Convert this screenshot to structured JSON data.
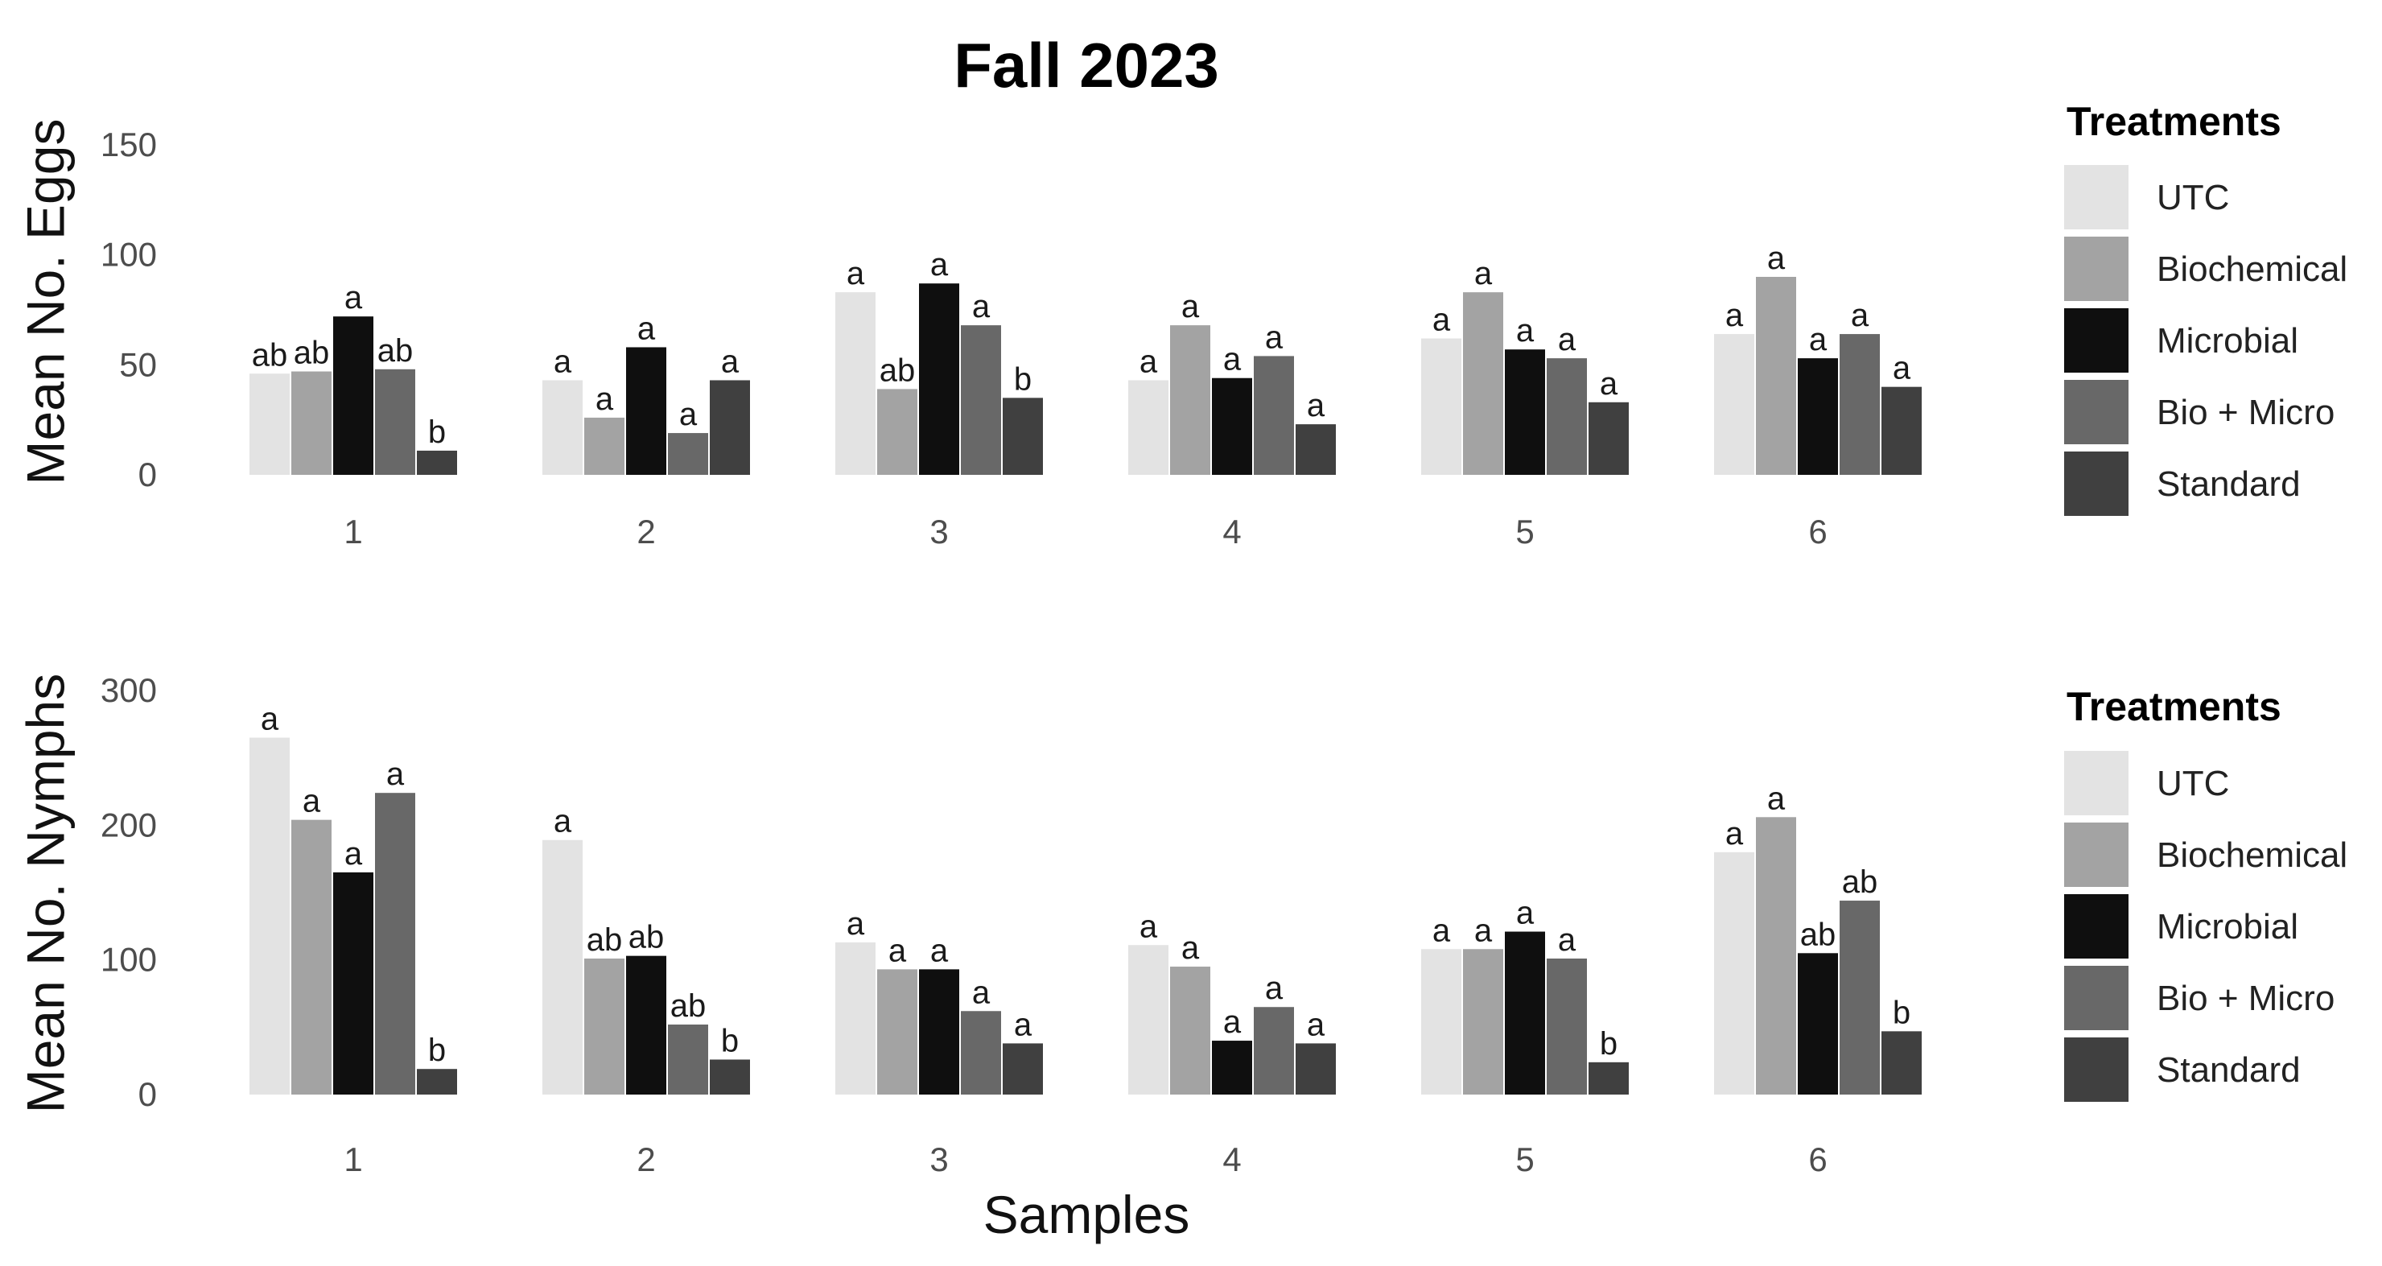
{
  "title": "Fall 2023",
  "xlabel": "Samples",
  "colors": {
    "UTC": "#e3e3e3",
    "Biochemical": "#a3a3a3",
    "Microbial": "#0f0f0f",
    "Bio + Micro": "#686868",
    "Standard": "#404040"
  },
  "chart_data": [
    {
      "type": "bar",
      "ylabel": "Mean No. Eggs",
      "ylim": [
        0,
        150
      ],
      "yticks": [
        0,
        50,
        100,
        150
      ],
      "categories": [
        "1",
        "2",
        "3",
        "4",
        "5",
        "6"
      ],
      "legend": {
        "title": "Treatments",
        "placement": "right"
      },
      "grid": false,
      "series": [
        {
          "name": "UTC",
          "values": [
            46,
            43,
            83,
            43,
            62,
            64
          ],
          "labels": [
            "ab",
            "a",
            "a",
            "a",
            "a",
            "a"
          ]
        },
        {
          "name": "Biochemical",
          "values": [
            47,
            26,
            39,
            68,
            83,
            90
          ],
          "labels": [
            "ab",
            "a",
            "ab",
            "a",
            "a",
            "a"
          ]
        },
        {
          "name": "Microbial",
          "values": [
            72,
            58,
            87,
            44,
            57,
            53
          ],
          "labels": [
            "a",
            "a",
            "a",
            "a",
            "a",
            "a"
          ]
        },
        {
          "name": "Bio + Micro",
          "values": [
            48,
            19,
            68,
            54,
            53,
            64
          ],
          "labels": [
            "ab",
            "a",
            "a",
            "a",
            "a",
            "a"
          ]
        },
        {
          "name": "Standard",
          "values": [
            11,
            43,
            35,
            23,
            33,
            40
          ],
          "labels": [
            "b",
            "a",
            "b",
            "a",
            "a",
            "a"
          ]
        }
      ]
    },
    {
      "type": "bar",
      "ylabel": "Mean No. Nymphs",
      "ylim": [
        0,
        300
      ],
      "yticks": [
        0,
        100,
        200,
        300
      ],
      "categories": [
        "1",
        "2",
        "3",
        "4",
        "5",
        "6"
      ],
      "legend": {
        "title": "Treatments",
        "placement": "right"
      },
      "grid": false,
      "series": [
        {
          "name": "UTC",
          "values": [
            265,
            189,
            113,
            111,
            108,
            180
          ],
          "labels": [
            "a",
            "a",
            "a",
            "a",
            "a",
            "a"
          ]
        },
        {
          "name": "Biochemical",
          "values": [
            204,
            101,
            93,
            95,
            108,
            206
          ],
          "labels": [
            "a",
            "ab",
            "a",
            "a",
            "a",
            "a"
          ]
        },
        {
          "name": "Microbial",
          "values": [
            165,
            103,
            93,
            40,
            121,
            105
          ],
          "labels": [
            "a",
            "ab",
            "a",
            "a",
            "a",
            "ab"
          ]
        },
        {
          "name": "Bio + Micro",
          "values": [
            224,
            52,
            62,
            65,
            101,
            144
          ],
          "labels": [
            "a",
            "ab",
            "a",
            "a",
            "a",
            "ab"
          ]
        },
        {
          "name": "Standard",
          "values": [
            19,
            26,
            38,
            38,
            24,
            47
          ],
          "labels": [
            "b",
            "b",
            "a",
            "a",
            "b",
            "b"
          ]
        }
      ]
    }
  ]
}
